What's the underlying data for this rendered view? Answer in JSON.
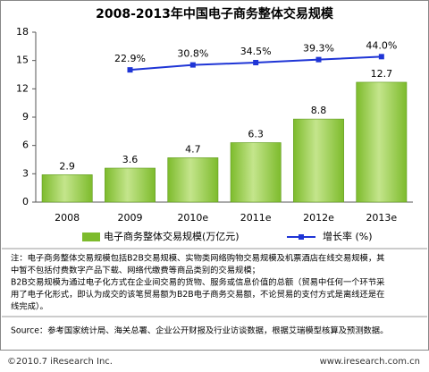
{
  "chart_data": {
    "type": "bar",
    "title": "2008-2013年中国电子商务整体交易规模",
    "categories": [
      "2008",
      "2009",
      "2010e",
      "2011e",
      "2012e",
      "2013e"
    ],
    "series": [
      {
        "name": "电子商务整体交易规模(万亿元)",
        "color": "#7dbb2c",
        "type": "bar",
        "values": [
          2.9,
          3.6,
          4.7,
          6.3,
          8.8,
          12.7
        ]
      },
      {
        "name": "增长率 (%)",
        "color": "#1f35d6",
        "type": "line",
        "axis": "y2",
        "values": [
          null,
          22.9,
          30.8,
          34.5,
          39.3,
          44.0
        ],
        "value_labels": [
          null,
          "22.9%",
          "30.8%",
          "34.5%",
          "39.3%",
          "44.0%"
        ]
      }
    ],
    "ylim": [
      0,
      18
    ],
    "yticks": [
      0,
      3,
      6,
      9,
      12,
      15,
      18
    ],
    "y2lim": [
      -188,
      83
    ],
    "grid": false,
    "legend": "bottom"
  },
  "notes": [
    "注：电子商务整体交易规模包括B2B交易规模、实物类网络购物交易规模及机票酒店在线交易规模，其",
    "中暂不包括付费数字产品下载、网络代缴费等商品类别的交易规模；",
    "B2B交易规模为通过电子化方式在企业间交易的货物、服务或信息价值的总额（贸易中任何一个环节采",
    "用了电子化形式，即认为成交的该笔贸易额为B2B电子商务交易额，不论贸易的支付方式是离线还是在",
    "线完成）。"
  ],
  "source": "Source：参考国家统计局、海关总署、企业公开财报及行业访谈数据，根据艾瑞模型核算及预测数据。",
  "copyright": "©2010.7 iResearch Inc.",
  "website": "www.iresearch.com.cn"
}
